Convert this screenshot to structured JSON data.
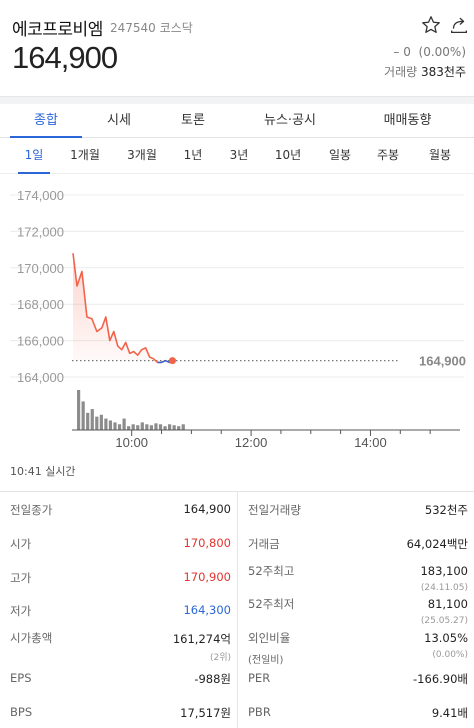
{
  "stock": {
    "name": "에코프로비엠",
    "code": "247540",
    "market": "코스닥",
    "price": "164,900",
    "change": "– 0",
    "change_pct": "(0.00%)",
    "volume_label": "거래량",
    "volume": "383천주"
  },
  "tabs": [
    "종합",
    "시세",
    "토론",
    "뉴스·공시",
    "매매동향"
  ],
  "active_tab": "종합",
  "periods": [
    "1일",
    "1개월",
    "3개월",
    "1년",
    "3년",
    "10년",
    "일봉",
    "주봉",
    "월봉"
  ],
  "active_period": "1일",
  "realtime_text": "10:41 실시간",
  "chart_data": {
    "type": "line",
    "y_ticks": [
      "174,000",
      "172,000",
      "170,000",
      "168,000",
      "166,000",
      "164,000"
    ],
    "ylim": [
      164000,
      174000
    ],
    "x_ticks": [
      "10:00",
      "12:00",
      "14:00"
    ],
    "x_range": [
      "09:00",
      "15:30"
    ],
    "reference_price": 164900,
    "reference_label": "164,900",
    "series": [
      {
        "values": [
          {
            "t": "09:01",
            "p": 170800
          },
          {
            "t": "09:05",
            "p": 169000
          },
          {
            "t": "09:10",
            "p": 169800
          },
          {
            "t": "09:15",
            "p": 167300
          },
          {
            "t": "09:20",
            "p": 167200
          },
          {
            "t": "09:25",
            "p": 166500
          },
          {
            "t": "09:30",
            "p": 166700
          },
          {
            "t": "09:34",
            "p": 167300
          },
          {
            "t": "09:38",
            "p": 166000
          },
          {
            "t": "09:42",
            "p": 166500
          },
          {
            "t": "09:46",
            "p": 165700
          },
          {
            "t": "09:50",
            "p": 165500
          },
          {
            "t": "09:54",
            "p": 165900
          },
          {
            "t": "09:58",
            "p": 165300
          },
          {
            "t": "10:02",
            "p": 165400
          },
          {
            "t": "10:06",
            "p": 165200
          },
          {
            "t": "10:10",
            "p": 165500
          },
          {
            "t": "10:14",
            "p": 165600
          },
          {
            "t": "10:18",
            "p": 165100
          },
          {
            "t": "10:22",
            "p": 165000
          },
          {
            "t": "10:26",
            "p": 164800
          },
          {
            "t": "10:30",
            "p": 164800
          },
          {
            "t": "10:34",
            "p": 164900
          },
          {
            "t": "10:38",
            "p": 164800
          },
          {
            "t": "10:41",
            "p": 164900
          }
        ]
      }
    ],
    "volume_bars": [
      42,
      30,
      18,
      22,
      14,
      16,
      12,
      10,
      8,
      6,
      12,
      4,
      6,
      5,
      8,
      6,
      5,
      7,
      6,
      4,
      6,
      5,
      4,
      6
    ]
  },
  "info": {
    "left": [
      {
        "label": "전일종가",
        "value": "164,900",
        "color": ""
      },
      {
        "label": "시가",
        "value": "170,800",
        "color": "red"
      },
      {
        "label": "고가",
        "value": "170,900",
        "color": "red"
      },
      {
        "label": "저가",
        "value": "164,300",
        "color": "blue"
      },
      {
        "label": "시가총액",
        "value": "161,274억",
        "sub": "(2위)",
        "color": ""
      },
      {
        "label": "EPS",
        "value": "-988원",
        "color": ""
      },
      {
        "label": "BPS",
        "value": "17,517원",
        "color": ""
      }
    ],
    "right": [
      {
        "label": "전일거래량",
        "value": "532천주"
      },
      {
        "label": "거래금",
        "value": "64,024백만"
      },
      {
        "label": "52주최고",
        "value": "183,100",
        "sub": "(24.11.05)"
      },
      {
        "label": "52주최저",
        "value": "81,100",
        "sub": "(25.05.27)"
      },
      {
        "label": "외인비율",
        "label2": "(전일비)",
        "value": "13.05%",
        "sub": "(0.00%)"
      },
      {
        "label": "PER",
        "value": "-166.90배"
      },
      {
        "label": "PBR",
        "value": "9.41배"
      }
    ]
  },
  "colors": {
    "accent": "#2b66d9",
    "up": "#e3342f",
    "down": "#2b66d9",
    "line": "#f2634a"
  }
}
